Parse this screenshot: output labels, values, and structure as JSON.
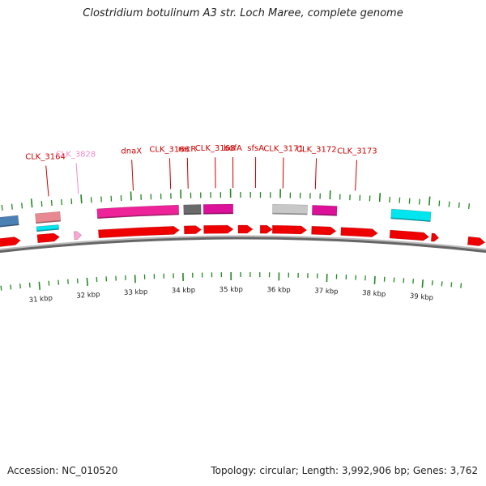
{
  "title": "Clostridium botulinum A3 str. Loch Maree, complete genome",
  "footer": {
    "accession": "Accession: NC_010520",
    "summary": "Topology: circular; Length: 3,992,906 bp; Genes: 3,762"
  },
  "colors": {
    "cds": "#ee0000",
    "pink_feature": "#ee2299",
    "magenta_feature": "#dd1199",
    "blue_feature": "#4a80b4",
    "cyan_feature": "#00e5ee",
    "salmon_feature": "#e88890",
    "light_pink_feature": "#f5a8d4",
    "gray_feature": "#6a6a6a",
    "light_gray_feature": "#c8c8c8",
    "backbone": "#666666",
    "ticks": "#228822",
    "label_red": "#cc0000",
    "label_pink": "#f08cc8"
  },
  "axis": {
    "start_kbp": 30.2,
    "end_kbp": 39.9,
    "tick_labels": [
      {
        "kbp": 31,
        "label": "31 kbp"
      },
      {
        "kbp": 32,
        "label": "32 kbp"
      },
      {
        "kbp": 33,
        "label": "33 kbp"
      },
      {
        "kbp": 34,
        "label": "34 kbp"
      },
      {
        "kbp": 35,
        "label": "35 kbp"
      },
      {
        "kbp": 36,
        "label": "36 kbp"
      },
      {
        "kbp": 37,
        "label": "37 kbp"
      },
      {
        "kbp": 38,
        "label": "38 kbp"
      },
      {
        "kbp": 39,
        "label": "39 kbp"
      }
    ]
  },
  "gene_labels": [
    {
      "name": "CLK_3164",
      "kbp": 31.35,
      "color": "red"
    },
    {
      "name": "CLK_3828",
      "kbp": 31.95,
      "color": "pink"
    },
    {
      "name": "dnaX",
      "kbp": 33.05,
      "color": "red"
    },
    {
      "name": "CLK_3166",
      "kbp": 33.8,
      "color": "red"
    },
    {
      "name": "recR",
      "kbp": 34.15,
      "color": "red"
    },
    {
      "name": "CLK_3168",
      "kbp": 34.7,
      "color": "red"
    },
    {
      "name": "bofA",
      "kbp": 35.05,
      "color": "red"
    },
    {
      "name": "sfsA",
      "kbp": 35.5,
      "color": "red"
    },
    {
      "name": "CLK_3171",
      "kbp": 36.05,
      "color": "red"
    },
    {
      "name": "CLK_3172",
      "kbp": 36.7,
      "color": "red"
    },
    {
      "name": "CLK_3173",
      "kbp": 37.5,
      "color": "red"
    }
  ],
  "features_outer": [
    {
      "start": 30.15,
      "end": 30.7,
      "type": "blue"
    },
    {
      "start": 31.05,
      "end": 31.55,
      "type": "salmon"
    },
    {
      "start": 32.3,
      "end": 33.95,
      "type": "pink"
    },
    {
      "start": 34.05,
      "end": 34.4,
      "type": "gray"
    },
    {
      "start": 34.45,
      "end": 35.05,
      "type": "magenta"
    },
    {
      "start": 35.85,
      "end": 36.55,
      "type": "light_gray"
    },
    {
      "start": 36.65,
      "end": 37.15,
      "type": "magenta"
    },
    {
      "start": 38.25,
      "end": 39.05,
      "type": "cyan"
    }
  ],
  "features_inner": [
    {
      "start": 31.05,
      "end": 31.5,
      "type": "cyan"
    }
  ],
  "cds_arrows": [
    {
      "start": 30.0,
      "end": 30.7,
      "strand": 1
    },
    {
      "start": 31.05,
      "end": 31.5,
      "strand": 1
    },
    {
      "start": 31.8,
      "end": 31.95,
      "strand": 1,
      "color": "light_pink"
    },
    {
      "start": 32.3,
      "end": 33.95,
      "strand": 1
    },
    {
      "start": 34.05,
      "end": 34.4,
      "strand": 1
    },
    {
      "start": 34.45,
      "end": 35.05,
      "strand": 1
    },
    {
      "start": 35.15,
      "end": 35.45,
      "strand": 1
    },
    {
      "start": 35.6,
      "end": 35.85,
      "strand": 1
    },
    {
      "start": 35.85,
      "end": 36.55,
      "strand": 1
    },
    {
      "start": 36.65,
      "end": 37.15,
      "strand": 1
    },
    {
      "start": 37.25,
      "end": 38.0,
      "strand": 1
    },
    {
      "start": 38.25,
      "end": 39.05,
      "strand": 1
    },
    {
      "start": 39.1,
      "end": 39.25,
      "strand": 1
    },
    {
      "start": 39.85,
      "end": 40.2,
      "strand": 1
    }
  ]
}
